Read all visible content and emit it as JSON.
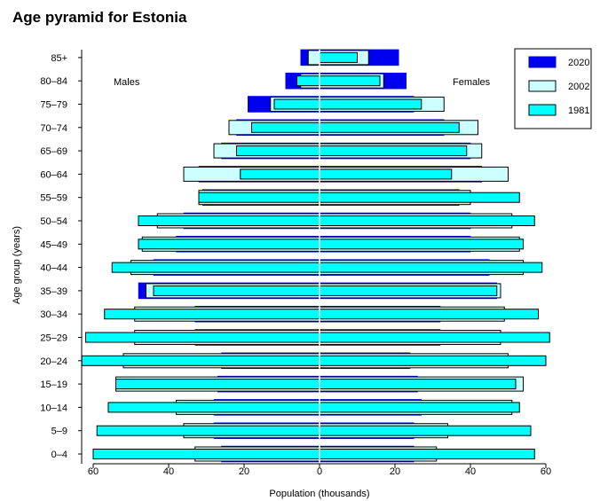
{
  "colors": {
    "c2020": "#0000ee",
    "c2002": "#ccffff",
    "c1981": "#00ffff",
    "outline": "#000000",
    "center_line": "#ffffff"
  },
  "chart_data": {
    "type": "bar",
    "title": "Age pyramid for Estonia",
    "xlabel": "Population (thousands)",
    "ylabel": "Age group (years)",
    "side_labels": {
      "left": "Males",
      "right": "Females"
    },
    "xlim": [
      -60,
      60
    ],
    "x_tick_values": [
      -60,
      -40,
      -20,
      0,
      20,
      40,
      60
    ],
    "x_tick_labels": [
      "60",
      "40",
      "20",
      "0",
      "20",
      "40",
      "60"
    ],
    "categories": [
      "0–4",
      "5–9",
      "10–14",
      "15–19",
      "20–24",
      "25–29",
      "30–34",
      "35–39",
      "40–44",
      "45–49",
      "50–54",
      "55–59",
      "60–64",
      "65–69",
      "70–74",
      "75–79",
      "80–84",
      "85+"
    ],
    "legend": {
      "placement": "top-right",
      "entries": [
        "2020",
        "2002",
        "1981"
      ]
    },
    "series": [
      {
        "name": "2020",
        "male": [
          26,
          28,
          28,
          27,
          26,
          33,
          33,
          48,
          44,
          38,
          36,
          31,
          32,
          26,
          22,
          19,
          9,
          5
        ],
        "female": [
          25,
          25,
          27,
          26,
          24,
          32,
          32,
          47,
          45,
          40,
          40,
          37,
          43,
          40,
          33,
          25,
          23,
          21
        ]
      },
      {
        "name": "2002",
        "male": [
          33,
          36,
          38,
          54,
          52,
          49,
          49,
          46,
          50,
          47,
          43,
          32,
          36,
          28,
          24,
          13,
          5,
          3
        ],
        "female": [
          31,
          34,
          51,
          54,
          50,
          48,
          49,
          48,
          54,
          53,
          51,
          40,
          50,
          43,
          42,
          33,
          17,
          13
        ]
      },
      {
        "name": "1981",
        "male": [
          60,
          59,
          56,
          54,
          63,
          62,
          57,
          44,
          55,
          48,
          48,
          32,
          21,
          22,
          18,
          12,
          6,
          0
        ],
        "female": [
          57,
          56,
          53,
          52,
          60,
          61,
          58,
          47,
          59,
          54,
          57,
          53,
          35,
          39,
          37,
          27,
          16,
          10
        ]
      }
    ]
  }
}
